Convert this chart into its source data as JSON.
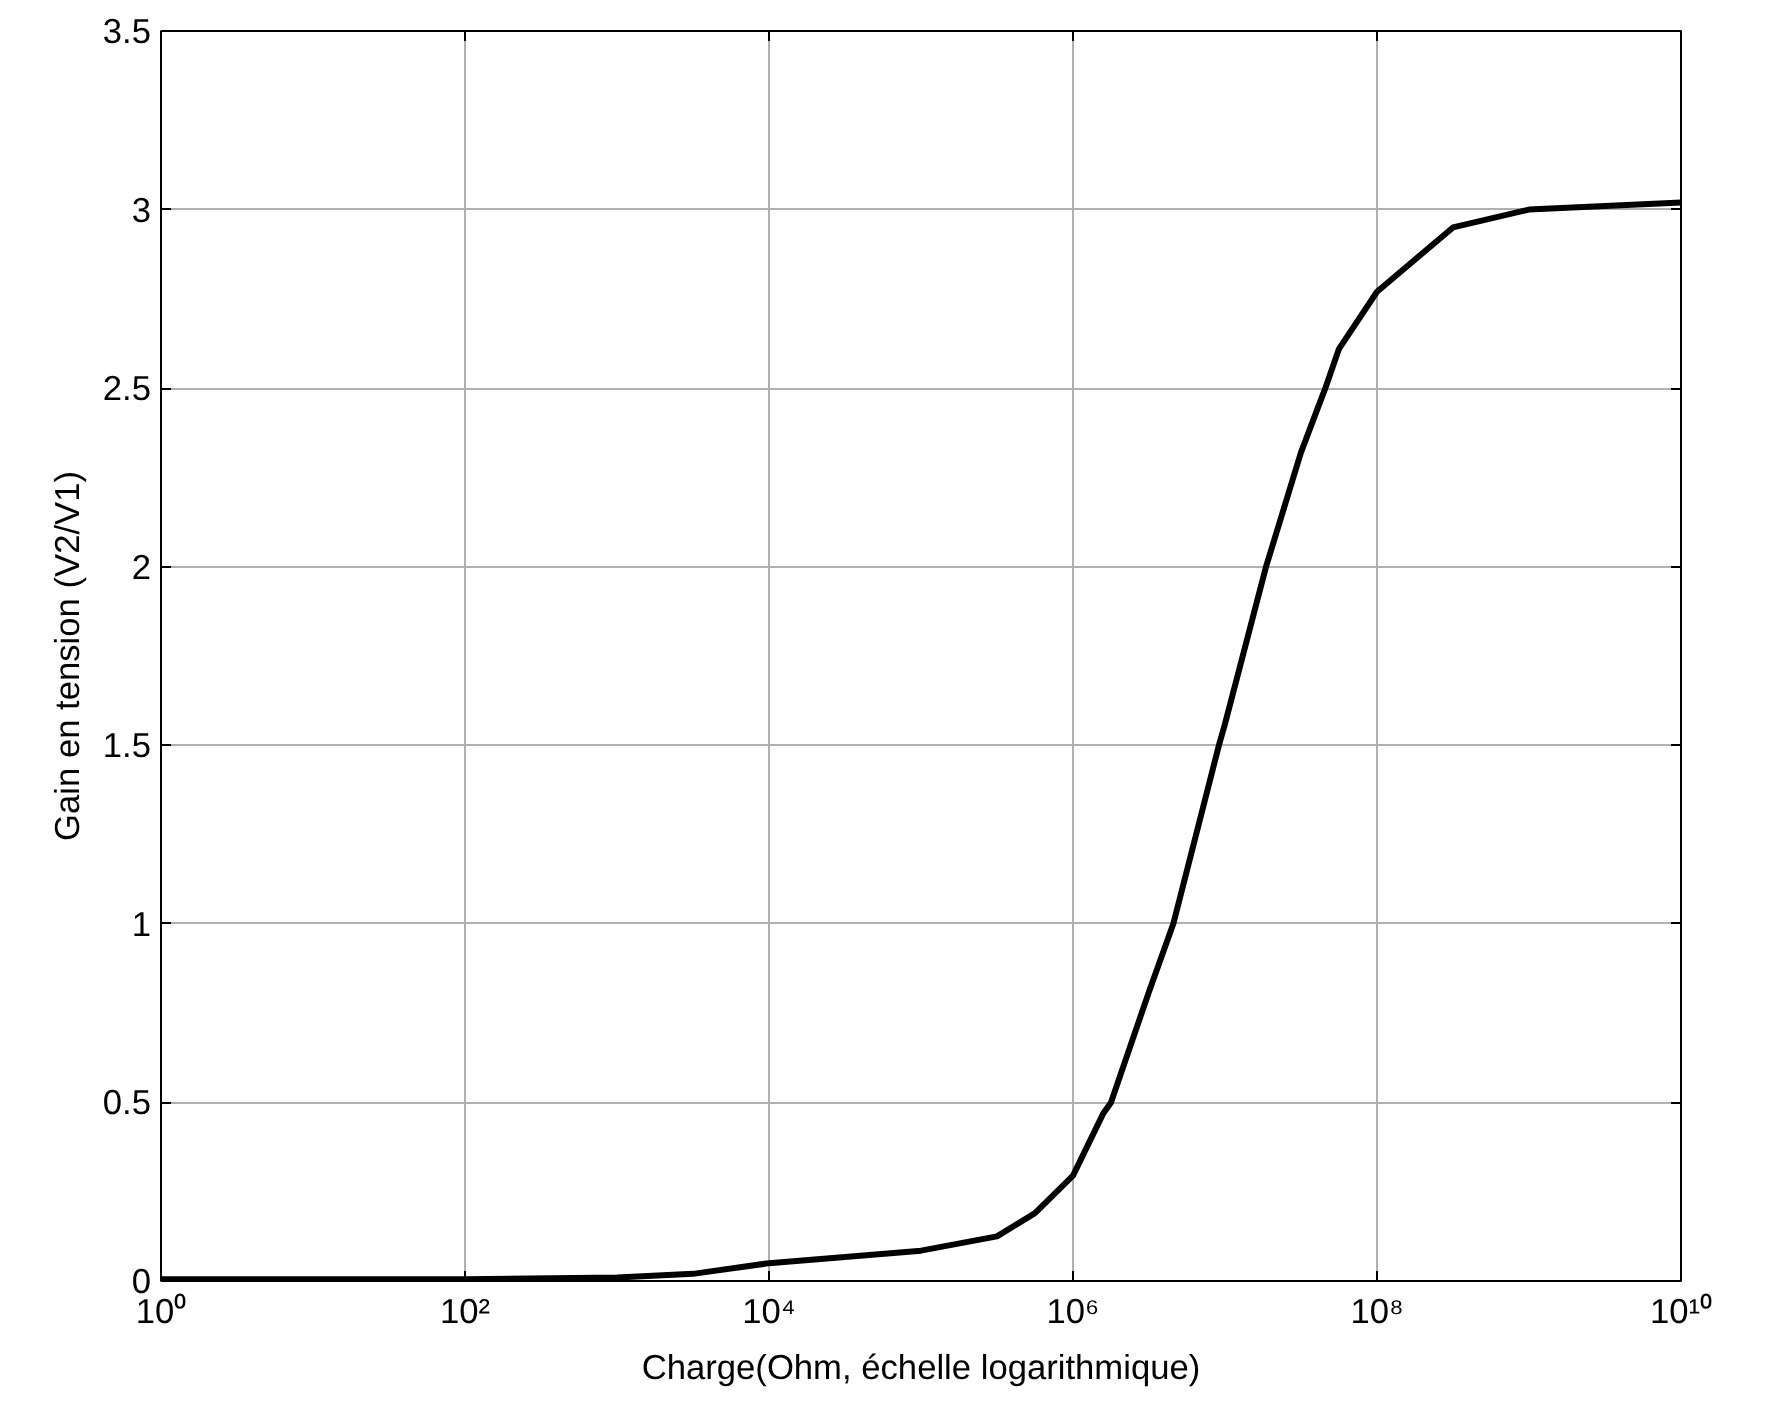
{
  "chart_data": {
    "type": "line",
    "xlabel": "Charge(Ohm, échelle logarithmique)",
    "ylabel": "Gain en tension (V2/V1)",
    "log": "x",
    "grid": true,
    "line_style": "solid",
    "x": [
      1,
      10,
      100,
      1000,
      3162,
      10000,
      100000,
      316200,
      562300,
      1000000,
      1585000,
      1778000,
      3162000,
      4571000,
      9120000,
      10000000,
      18620000,
      31620000,
      45710000,
      56230000,
      100000000,
      316200000,
      1000000000,
      10000000000
    ],
    "series": [
      {
        "color": "#000000",
        "values": [
          0.005,
          0.005,
          0.005,
          0.01,
          0.02,
          0.05,
          0.085,
          0.125,
          0.19,
          0.295,
          0.47,
          0.5,
          0.81,
          1.0,
          1.5,
          1.56,
          2.0,
          2.32,
          2.5,
          2.61,
          2.77,
          2.95,
          3.0,
          3.02
        ]
      }
    ],
    "xlim": [
      1,
      10000000000
    ],
    "ylim": [
      0,
      3.5
    ],
    "xticks": [
      {
        "value": 1,
        "label": "10⁰"
      },
      {
        "value": 100,
        "label": "10²"
      },
      {
        "value": 10000,
        "label": "10⁴"
      },
      {
        "value": 1000000,
        "label": "10⁶"
      },
      {
        "value": 100000000,
        "label": "10⁸"
      },
      {
        "value": 10000000000,
        "label": "10¹⁰"
      }
    ],
    "yticks": [
      0,
      0.5,
      1,
      1.5,
      2,
      2.5,
      3,
      3.5
    ]
  }
}
